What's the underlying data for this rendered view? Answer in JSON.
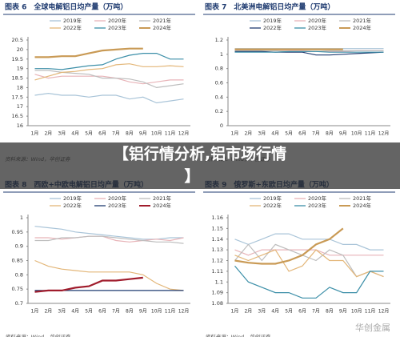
{
  "chart_data": [
    {
      "type": "line",
      "title": "图表 6　全球电解铝日均产量（万吨）",
      "source": "资料来源：Wind，华创证券",
      "categories": [
        "1月",
        "2月",
        "3月",
        "4月",
        "5月",
        "6月",
        "7月",
        "8月",
        "9月",
        "10月",
        "11月",
        "12月"
      ],
      "ylim": [
        16,
        20.5
      ],
      "yticks": [
        16,
        16.5,
        17,
        17.5,
        18,
        18.5,
        19,
        19.5,
        20,
        20.5
      ],
      "series": [
        {
          "name": "2019年",
          "color": "#a9c4d8",
          "values": [
            17.6,
            17.7,
            17.6,
            17.6,
            17.5,
            17.6,
            17.6,
            17.4,
            17.5,
            17.2,
            17.3,
            17.4
          ]
        },
        {
          "name": "2020年",
          "color": "#e8b4b8",
          "values": [
            18.7,
            18.5,
            18.6,
            18.6,
            18.6,
            18.6,
            18.5,
            18.3,
            18.2,
            18.3,
            18.4,
            18.4
          ]
        },
        {
          "name": "2021年",
          "color": "#bdbdbd",
          "values": [
            18.9,
            18.9,
            18.8,
            18.75,
            18.7,
            18.5,
            18.5,
            18.45,
            18.3,
            18.0,
            18.1,
            18.2
          ]
        },
        {
          "name": "2022年",
          "color": "#e3b678",
          "values": [
            18.4,
            18.6,
            18.8,
            18.85,
            18.95,
            19.0,
            19.2,
            19.25,
            19.1,
            19.1,
            19.15,
            19.1
          ]
        },
        {
          "name": "2023年",
          "color": "#3c8fa8",
          "values": [
            19.0,
            19.0,
            18.95,
            19.05,
            19.15,
            19.2,
            19.5,
            19.7,
            19.8,
            19.8,
            19.5,
            19.5
          ]
        },
        {
          "name": "2024年",
          "color": "#c99a55",
          "values": [
            19.6,
            19.6,
            19.65,
            19.65,
            19.8,
            19.95,
            20.0,
            20.05,
            20.05,
            null,
            null,
            null
          ]
        }
      ]
    },
    {
      "type": "line",
      "title": "图表 7　北美洲电解铝日均产量（万吨）",
      "source": "资料来源：Wind，华创证券",
      "categories": [
        "1月",
        "2月",
        "3月",
        "4月",
        "5月",
        "6月",
        "7月",
        "8月",
        "9月",
        "10月",
        "11月",
        "12月"
      ],
      "ylim": [
        0,
        1.2
      ],
      "yticks": [
        0,
        0.2,
        0.4,
        0.6,
        0.8,
        1,
        1.2
      ],
      "series": [
        {
          "name": "2019年",
          "color": "#a9c4d8",
          "values": [
            1.08,
            1.08,
            1.08,
            1.08,
            1.08,
            1.08,
            1.08,
            1.08,
            1.08,
            1.08,
            1.08,
            1.08
          ]
        },
        {
          "name": "2020年",
          "color": "#e8b4b8",
          "values": [
            1.06,
            1.06,
            1.05,
            1.05,
            1.05,
            1.05,
            1.04,
            1.04,
            1.04,
            1.05,
            1.05,
            1.05
          ]
        },
        {
          "name": "2021年",
          "color": "#bdbdbd",
          "values": [
            1.05,
            1.05,
            1.05,
            1.05,
            1.04,
            1.04,
            1.04,
            1.05,
            1.05,
            1.05,
            1.05,
            1.05
          ]
        },
        {
          "name": "2022年",
          "color": "#1f3b70",
          "values": [
            1.04,
            1.04,
            1.04,
            1.03,
            1.03,
            1.03,
            0.99,
            0.99,
            1.0,
            1.01,
            1.02,
            1.03
          ]
        },
        {
          "name": "2023年",
          "color": "#3c8fa8",
          "values": [
            1.03,
            1.03,
            1.03,
            1.03,
            1.04,
            1.04,
            1.04,
            1.03,
            1.03,
            1.03,
            1.03,
            1.03
          ]
        },
        {
          "name": "2024年",
          "color": "#c99a55",
          "values": [
            1.07,
            1.07,
            1.07,
            1.07,
            1.07,
            1.07,
            1.07,
            1.07,
            1.07,
            null,
            null,
            null
          ]
        }
      ]
    },
    {
      "type": "line",
      "title": "图表 8　西欧+中欧电解铝日均产量（万吨）",
      "source": "资料来源：Wind，华创证券",
      "categories": [
        "1月",
        "2月",
        "3月",
        "4月",
        "5月",
        "6月",
        "7月",
        "8月",
        "9月",
        "10月",
        "11月",
        "12月"
      ],
      "ylim": [
        0.7,
        1
      ],
      "yticks": [
        0.7,
        0.75,
        0.8,
        0.85,
        0.9,
        0.95,
        1
      ],
      "series": [
        {
          "name": "2019年",
          "color": "#a9c4d8",
          "values": [
            0.97,
            0.965,
            0.96,
            0.95,
            0.945,
            0.94,
            0.935,
            0.93,
            0.925,
            0.925,
            0.93,
            0.93
          ]
        },
        {
          "name": "2020年",
          "color": "#e8b4b8",
          "values": [
            0.93,
            0.93,
            0.925,
            0.93,
            0.935,
            0.935,
            0.92,
            0.915,
            0.92,
            0.925,
            0.92,
            0.93
          ]
        },
        {
          "name": "2021年",
          "color": "#bdbdbd",
          "values": [
            0.92,
            0.92,
            0.93,
            0.93,
            0.935,
            0.935,
            0.93,
            0.925,
            0.92,
            0.915,
            0.915,
            0.91
          ]
        },
        {
          "name": "2022年",
          "color": "#e3b678",
          "values": [
            0.85,
            0.83,
            0.82,
            0.815,
            0.81,
            0.81,
            0.81,
            0.81,
            0.8,
            0.77,
            0.75,
            0.745
          ]
        },
        {
          "name": "2023年",
          "color": "#1f3b70",
          "values": [
            0.745,
            0.745,
            0.745,
            0.745,
            0.745,
            0.745,
            0.745,
            0.745,
            0.745,
            0.745,
            0.745,
            0.745
          ]
        },
        {
          "name": "2024年",
          "color": "#a01c2c",
          "values": [
            0.74,
            0.745,
            0.745,
            0.755,
            0.76,
            0.78,
            0.78,
            0.785,
            0.79,
            null,
            null,
            null
          ]
        }
      ]
    },
    {
      "type": "line",
      "title": "图表 9　俄罗斯+东欧日均产量（万吨）",
      "source": "资料来源：Wind，华创证券",
      "categories": [
        "1月",
        "2月",
        "3月",
        "4月",
        "5月",
        "6月",
        "7月",
        "8月",
        "9月",
        "10月",
        "11月",
        "12月"
      ],
      "ylim": [
        1.08,
        1.16
      ],
      "yticks": [
        1.08,
        1.09,
        1.1,
        1.11,
        1.12,
        1.13,
        1.14,
        1.15,
        1.16
      ],
      "series": [
        {
          "name": "2019年",
          "color": "#a9c4d8",
          "values": [
            1.14,
            1.135,
            1.14,
            1.145,
            1.145,
            1.14,
            1.14,
            1.14,
            1.135,
            1.135,
            1.13,
            1.13
          ]
        },
        {
          "name": "2020年",
          "color": "#e8b4b8",
          "values": [
            1.13,
            1.125,
            1.13,
            1.13,
            1.13,
            1.13,
            1.13,
            1.125,
            1.125,
            1.125,
            1.125,
            1.125
          ]
        },
        {
          "name": "2021年",
          "color": "#bdbdbd",
          "values": [
            1.12,
            1.135,
            1.12,
            1.135,
            1.13,
            1.125,
            1.12,
            1.13,
            1.125,
            1.105,
            1.11,
            1.105
          ]
        },
        {
          "name": "2022年",
          "color": "#e3b678",
          "values": [
            1.125,
            1.12,
            1.125,
            1.13,
            1.11,
            1.115,
            1.13,
            1.12,
            1.12,
            1.105,
            1.11,
            1.105
          ]
        },
        {
          "name": "2023年",
          "color": "#3c8fa8",
          "values": [
            1.115,
            1.1,
            1.095,
            1.09,
            1.09,
            1.085,
            1.085,
            1.095,
            1.09,
            1.09,
            1.11,
            1.11
          ]
        },
        {
          "name": "2024年",
          "color": "#c99a55",
          "values": [
            1.12,
            1.118,
            1.117,
            1.117,
            1.12,
            1.125,
            1.135,
            1.14,
            1.15,
            null,
            null,
            null
          ]
        }
      ]
    }
  ],
  "overlay_title": [
    "【铝行情分析,铝市场行情",
    "】"
  ],
  "watermark": "华创金属"
}
